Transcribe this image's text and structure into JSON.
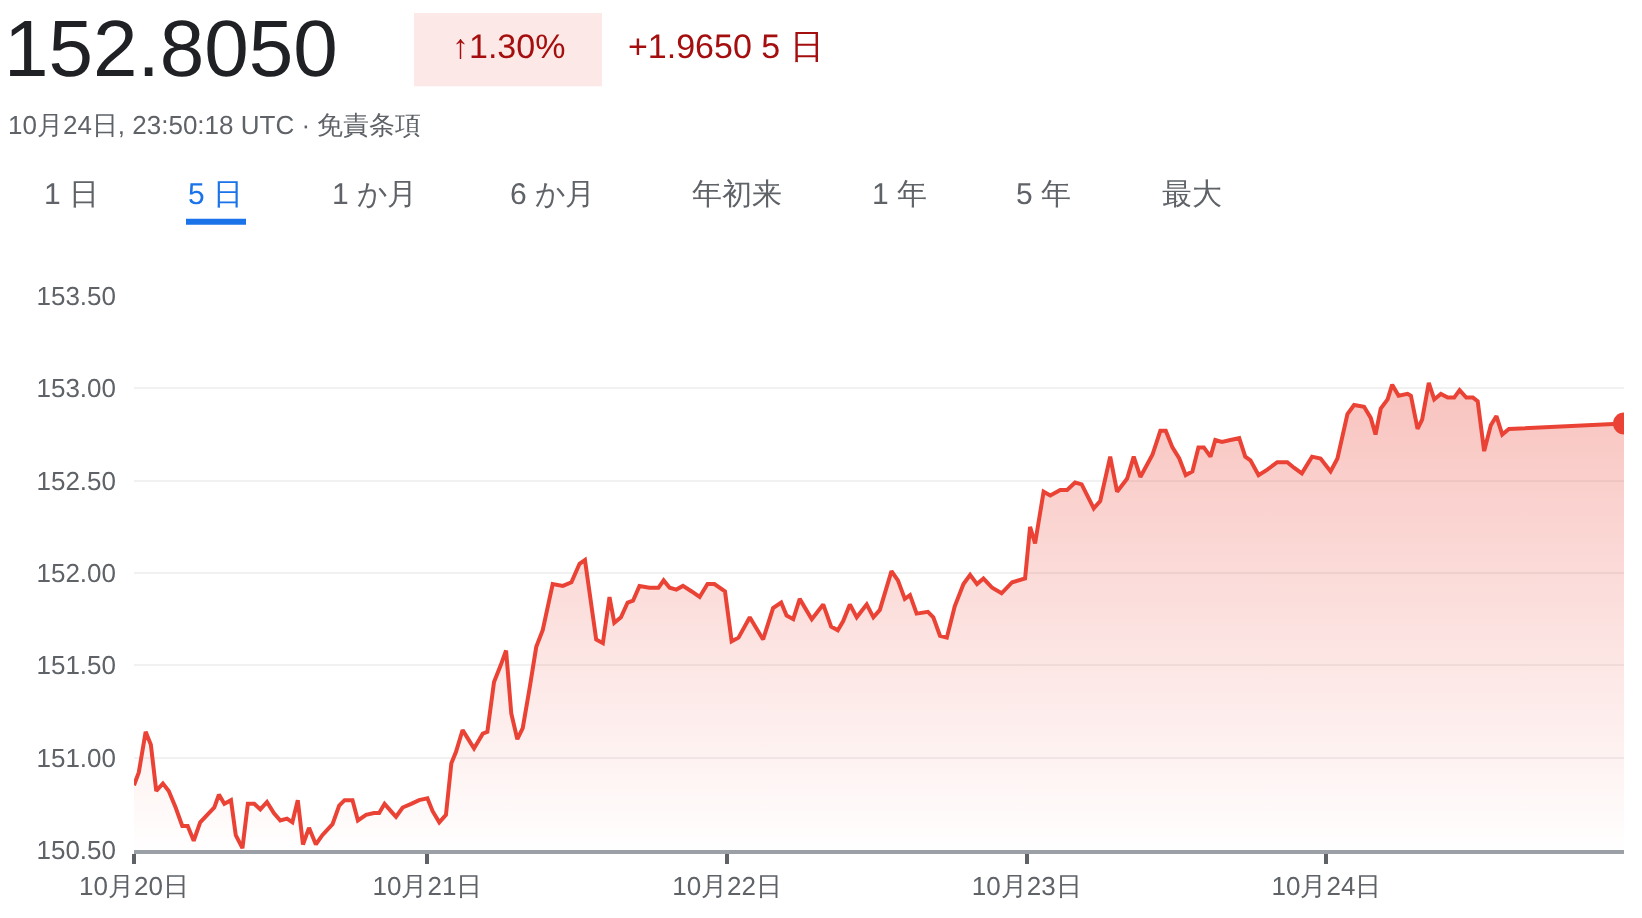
{
  "chart_data": {
    "type": "area",
    "title": "152.8050",
    "subtitle": "10月24日, 23:50:18 UTC · 免責条項",
    "annotations": [
      "↑1.30%",
      "+1.9650 5 日",
      "1 日",
      "5 日",
      "1 か月",
      "6 か月",
      "年初来",
      "1 年",
      "5 年",
      "最大"
    ],
    "x": [
      "--10-20T00:30",
      "--10-20T00:53",
      "--10-20T01:26",
      "--10-20T01:51",
      "--10-20T02:17",
      "--10-20T02:49",
      "--10-20T03:17",
      "--10-20T03:50",
      "--10-20T04:22",
      "--10-20T04:48",
      "--10-20T05:17",
      "--10-20T05:48",
      "--10-20T06:30",
      "--10-20T06:56",
      "--10-20T07:18",
      "--10-20T07:44",
      "--10-20T08:16",
      "--10-20T08:39",
      "--10-20T09:11",
      "--10-20T09:37",
      "--10-20T10:08",
      "--10-20T10:37",
      "--10-20T11:09",
      "--10-20T11:42",
      "--10-20T12:13",
      "--10-20T12:45",
      "--10-20T13:11",
      "--10-20T13:37",
      "--10-20T14:02",
      "--10-20T14:31",
      "--10-20T15:04",
      "--10-20T15:35",
      "--10-20T16:24",
      "--10-20T16:56",
      "--10-20T17:22",
      "--10-20T18:00",
      "--10-20T18:26",
      "--10-20T19:05",
      "--10-20T19:43",
      "--10-20T20:08",
      "--10-20T20:34",
      "--10-20T21:13",
      "--10-20T21:29",
      "--10-20T22:01",
      "--10-20T22:42",
      "--10-20T23:20",
      "--10-21T00:00",
      "--10-21T00:25",
      "--10-21T00:57",
      "--10-21T01:29",
      "--10-21T01:55",
      "--10-21T02:17",
      "--10-21T02:49",
      "--10-21T03:11",
      "--10-21T03:44",
      "--10-21T04:26",
      "--10-21T04:48",
      "--10-21T05:20",
      "--10-21T05:52",
      "--10-21T06:18",
      "--10-21T06:43",
      "--10-21T07:12",
      "--10-21T07:38",
      "--10-21T08:10",
      "--10-21T08:43",
      "--10-21T09:14",
      "--10-21T10:02",
      "--10-21T10:51",
      "--10-21T11:32",
      "--10-21T12:11",
      "--10-21T12:37",
      "--10-21T13:31",
      "--10-21T14:03",
      "--10-21T14:35",
      "--10-21T14:58",
      "--10-21T15:30",
      "--10-21T16:02",
      "--10-21T16:28",
      "--10-21T16:59",
      "--10-21T17:47",
      "--10-21T18:30",
      "--10-21T18:55",
      "--10-21T19:24",
      "--10-21T19:56",
      "--10-21T20:28",
      "--10-21T21:10",
      "--10-21T21:48",
      "--10-21T22:26",
      "--10-21T22:59",
      "--10-21T23:50",
      "--10-22T00:22",
      "--10-22T00:55",
      "--10-22T01:49",
      "--10-22T02:53",
      "--10-22T03:41",
      "--10-22T04:20",
      "--10-22T04:46",
      "--10-22T05:18",
      "--10-22T05:49",
      "--10-22T06:47",
      "--10-22T07:42",
      "--10-22T08:20",
      "--10-22T08:52",
      "--10-22T09:18",
      "--10-22T09:50",
      "--10-22T10:23",
      "--10-22T11:11",
      "--10-22T11:43",
      "--10-22T12:14",
      "--10-22T13:10",
      "--10-22T13:41",
      "--10-22T14:14",
      "--10-22T14:39",
      "--10-22T15:11",
      "--10-22T16:05",
      "--10-22T16:31",
      "--10-22T17:03",
      "--10-22T17:36",
      "--10-22T18:14",
      "--10-22T18:56",
      "--10-22T19:28",
      "--10-22T20:01",
      "--10-22T20:32",
      "--10-22T21:14",
      "--10-22T21:59",
      "--10-22T22:50",
      "--10-22T23:52",
      "--10-23T00:16",
      "--10-23T00:40",
      "--10-23T01:21",
      "--10-23T01:53",
      "--10-23T02:41",
      "--10-23T03:14",
      "--10-23T03:52",
      "--10-23T04:24",
      "--10-23T05:22",
      "--10-23T05:53",
      "--10-23T06:41",
      "--10-23T07:14",
      "--10-23T08:02",
      "--10-23T08:34",
      "--10-23T09:06",
      "--10-23T10:04",
      "--10-23T10:42",
      "--10-23T11:08",
      "--10-23T11:40",
      "--10-23T12:13",
      "--10-23T12:44",
      "--10-23T13:16",
      "--10-23T13:45",
      "--10-23T14:11",
      "--10-23T14:43",
      "--10-23T15:06",
      "--10-23T15:38",
      "--10-23T16:19",
      "--10-23T17:01",
      "--10-23T17:30",
      "--10-23T17:55",
      "--10-23T18:34",
      "--10-23T19:16",
      "--10-23T20:04",
      "--10-23T20:52",
      "--10-23T21:24",
      "--10-23T22:02",
      "--10-23T22:51",
      "--10-23T23:32",
      "--10-24T00:20",
      "--10-24T00:53",
      "--10-24T01:41",
      "--10-24T02:13",
      "--10-24T03:01",
      "--10-24T03:33",
      "--10-24T03:56",
      "--10-24T04:21",
      "--10-24T04:54",
      "--10-24T05:16",
      "--10-24T05:47",
      "--10-24T06:30",
      "--10-24T06:46",
      "--10-24T07:18",
      "--10-24T07:40",
      "--10-24T08:12",
      "--10-24T08:38",
      "--10-24T09:10",
      "--10-24T09:43",
      "--10-24T10:14",
      "--10-24T10:40",
      "--10-24T11:12",
      "--10-24T11:44",
      "--10-24T12:07",
      "--10-24T12:38",
      "--10-24T13:10",
      "--10-24T13:37",
      "--10-24T14:05",
      "--10-24T14:37",
      "--10-24T23:50"
    ],
    "series": [
      {
        "color": "#ea4335",
        "values": [
          150.85,
          150.92,
          151.14,
          151.07,
          150.82,
          150.86,
          150.82,
          150.73,
          150.63,
          150.63,
          150.55,
          150.65,
          150.7,
          150.73,
          150.8,
          150.75,
          150.77,
          150.58,
          150.51,
          150.75,
          150.75,
          150.72,
          150.76,
          150.7,
          150.66,
          150.67,
          150.65,
          150.77,
          150.53,
          150.62,
          150.53,
          150.58,
          150.64,
          150.74,
          150.77,
          150.77,
          150.66,
          150.69,
          150.7,
          150.7,
          150.75,
          150.7,
          150.68,
          150.73,
          150.75,
          150.77,
          150.78,
          150.71,
          150.65,
          150.69,
          150.97,
          151.03,
          151.15,
          151.11,
          151.05,
          151.13,
          151.14,
          151.41,
          151.5,
          151.58,
          151.24,
          151.1,
          151.16,
          151.37,
          151.6,
          151.69,
          151.94,
          151.93,
          151.95,
          152.05,
          152.07,
          151.64,
          151.62,
          151.87,
          151.73,
          151.76,
          151.84,
          151.85,
          151.93,
          151.92,
          151.92,
          151.96,
          151.92,
          151.91,
          151.93,
          151.9,
          151.87,
          151.94,
          151.94,
          151.9,
          151.63,
          151.65,
          151.76,
          151.64,
          151.81,
          151.84,
          151.77,
          151.75,
          151.86,
          151.75,
          151.83,
          151.71,
          151.69,
          151.74,
          151.83,
          151.76,
          151.83,
          151.76,
          151.8,
          152.01,
          151.96,
          151.86,
          151.88,
          151.78,
          151.79,
          151.76,
          151.66,
          151.65,
          151.82,
          151.94,
          151.99,
          151.94,
          151.97,
          151.92,
          151.89,
          151.95,
          151.97,
          152.25,
          152.16,
          152.44,
          152.42,
          152.45,
          152.45,
          152.49,
          152.48,
          152.35,
          152.39,
          152.63,
          152.44,
          152.51,
          152.63,
          152.52,
          152.64,
          152.77,
          152.77,
          152.68,
          152.62,
          152.53,
          152.55,
          152.68,
          152.68,
          152.63,
          152.72,
          152.71,
          152.72,
          152.73,
          152.63,
          152.61,
          152.53,
          152.56,
          152.6,
          152.6,
          152.57,
          152.54,
          152.63,
          152.62,
          152.55,
          152.62,
          152.86,
          152.91,
          152.9,
          152.84,
          152.75,
          152.89,
          152.94,
          153.02,
          152.96,
          152.97,
          152.96,
          152.78,
          152.83,
          153.03,
          152.94,
          152.97,
          152.95,
          152.95,
          152.99,
          152.95,
          152.95,
          152.93,
          152.66,
          152.8,
          152.85,
          152.75,
          152.78,
          152.81
        ]
      }
    ],
    "xlim": [
      "--10-20T00:30",
      "--10-24T23:50"
    ],
    "xticks": [
      {
        "value": "--10-20T00:30",
        "label": "10月20日"
      },
      {
        "value": "--10-21",
        "label": "10月21日"
      },
      {
        "value": "--10-22",
        "label": "10月22日"
      },
      {
        "value": "--10-23",
        "label": "10月23日"
      },
      {
        "value": "--10-24",
        "label": "10月24日"
      }
    ],
    "ylim": [
      150.5,
      153.5
    ],
    "yticks": [
      {
        "value": 150.5,
        "label": "150.50"
      },
      {
        "value": 151,
        "label": "151.00"
      },
      {
        "value": 151.5,
        "label": "151.50"
      },
      {
        "value": 152,
        "label": "152.00"
      },
      {
        "value": 152.5,
        "label": "152.50"
      },
      {
        "value": 153,
        "label": "153.00"
      },
      {
        "value": 153.5,
        "label": "153.50"
      }
    ],
    "grid": "y"
  }
}
